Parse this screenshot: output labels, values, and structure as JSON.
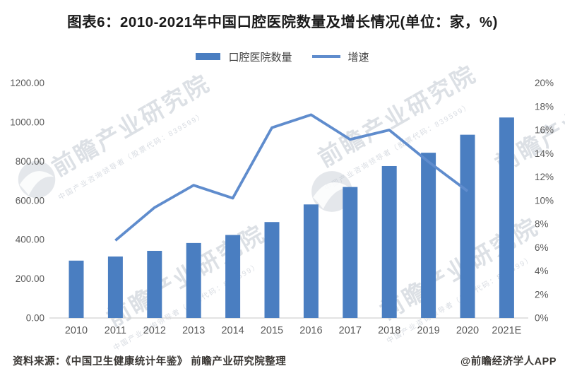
{
  "title": "图表6：2010-2021年中国口腔医院数量及增长情况(单位：家，%)",
  "legend": {
    "bar_label": "口腔医院数量",
    "line_label": "增速"
  },
  "footer": {
    "source": "资料来源：《中国卫生健康统计年鉴》 前瞻产业研究院整理",
    "credit": "@前瞻经济学人APP"
  },
  "watermark": {
    "brand": "前瞻产业研究院",
    "slogan": "中国产业咨询领导者（股票代码：839599）"
  },
  "colors": {
    "bar": "#4a7ec1",
    "line": "#5f8ccd",
    "axis_text": "#595959",
    "axis_line": "#d2d2d2",
    "title_text": "#1a1a1a",
    "legend_text": "#3f3f3f",
    "footer_text": "#3a3734",
    "watermark": "#b2bac6"
  },
  "chart_data": {
    "type": "bar+line",
    "title": "图表6：2010-2021年中国口腔医院数量及增长情况(单位：家，%)",
    "categories": [
      "2010",
      "2011",
      "2012",
      "2013",
      "2014",
      "2015",
      "2016",
      "2017",
      "2018",
      "2019",
      "2020",
      "2021E"
    ],
    "series": [
      {
        "name": "口腔医院数量",
        "type": "bar",
        "axis": "left",
        "unit": "家",
        "values": [
          293,
          314,
          343,
          383,
          424,
          490,
          580,
          669,
          776,
          844,
          936,
          1024
        ]
      },
      {
        "name": "增速",
        "type": "line",
        "axis": "right",
        "unit": "%",
        "x": [
          "2011",
          "2012",
          "2013",
          "2014",
          "2015",
          "2016",
          "2017",
          "2018",
          "2019",
          "2020"
        ],
        "values": [
          6.6,
          9.4,
          11.3,
          10.2,
          16.2,
          17.3,
          15.2,
          16.0,
          13.3,
          10.8
        ]
      }
    ],
    "left_axis": {
      "min": 0,
      "max": 1200,
      "step": 200,
      "tick_labels": [
        "0.00",
        "200.00",
        "400.00",
        "600.00",
        "800.00",
        "1000.00",
        "1200.00"
      ]
    },
    "right_axis": {
      "min": 0,
      "max": 20,
      "step": 2,
      "tick_labels": [
        "0%",
        "2%",
        "4%",
        "6%",
        "8%",
        "10%",
        "12%",
        "14%",
        "16%",
        "18%",
        "20%"
      ]
    },
    "grid": false,
    "legend_position": "top-center"
  }
}
